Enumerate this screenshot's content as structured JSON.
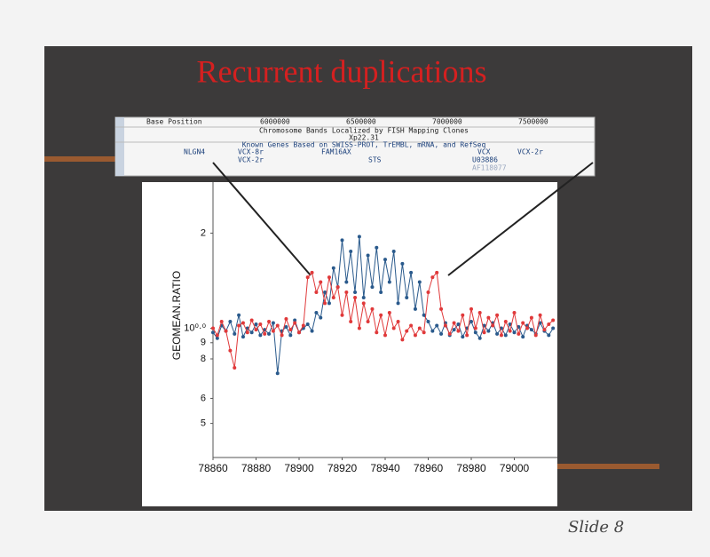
{
  "slide": {
    "title": "Recurrent duplications",
    "note": "Slide 8"
  },
  "browser": {
    "base_label": "Base Position",
    "positions": [
      "6000000",
      "6500000",
      "7000000",
      "7500000"
    ],
    "bands_title": "Chromosome Bands Localized by FISH Mapping Clones",
    "band": "Xp22.31",
    "genes_title": "Known Genes Based on SWISS-PROT, TrEMBL, mRNA, and RefSeq",
    "genes": [
      "NLGN4",
      "VCX-8r",
      "VCX-2r",
      "FAM16AX",
      "STS",
      "VCX",
      "VCX-2r",
      "U03886",
      "AF118077"
    ]
  },
  "chart_data": {
    "type": "line",
    "y_label": "GEOMEAN.RATIO",
    "x": [
      78860,
      78862,
      78864,
      78866,
      78868,
      78870,
      78872,
      78874,
      78876,
      78878,
      78880,
      78882,
      78884,
      78886,
      78888,
      78890,
      78892,
      78894,
      78896,
      78898,
      78900,
      78902,
      78904,
      78906,
      78908,
      78910,
      78912,
      78914,
      78916,
      78918,
      78920,
      78922,
      78924,
      78926,
      78928,
      78930,
      78932,
      78934,
      78936,
      78938,
      78940,
      78942,
      78944,
      78946,
      78948,
      78950,
      78952,
      78954,
      78956,
      78958,
      78960,
      78962,
      78964,
      78966,
      78968,
      78970,
      78972,
      78974,
      78976,
      78978,
      78980,
      78982,
      78984,
      78986,
      78988,
      78990,
      78992,
      78994,
      78996,
      78998,
      79000,
      79002,
      79004,
      79006,
      79008,
      79010,
      79012,
      79014,
      79016,
      79018
    ],
    "series": [
      {
        "color": "#2a5a8c",
        "values": [
          0.97,
          0.93,
          1.02,
          0.98,
          1.05,
          0.96,
          1.1,
          0.94,
          1.0,
          0.97,
          1.03,
          0.95,
          0.99,
          0.96,
          1.04,
          0.72,
          0.98,
          1.01,
          0.95,
          1.06,
          0.97,
          1.0,
          1.03,
          0.98,
          1.12,
          1.08,
          1.3,
          1.2,
          1.55,
          1.35,
          1.9,
          1.4,
          1.75,
          1.3,
          1.95,
          1.25,
          1.7,
          1.35,
          1.8,
          1.3,
          1.65,
          1.4,
          1.75,
          1.2,
          1.6,
          1.25,
          1.5,
          1.15,
          1.4,
          1.1,
          1.05,
          0.98,
          1.02,
          0.96,
          1.04,
          0.95,
          0.99,
          1.03,
          0.94,
          1.0,
          1.05,
          0.97,
          0.93,
          1.02,
          0.98,
          1.04,
          0.96,
          1.0,
          0.95,
          1.03,
          0.97,
          1.01,
          0.94,
          1.02,
          0.99,
          0.96,
          1.04,
          0.98,
          0.95,
          1.0
        ]
      },
      {
        "color": "#e0393a",
        "values": [
          1.0,
          0.95,
          1.05,
          0.98,
          0.85,
          0.75,
          1.02,
          1.04,
          0.97,
          1.06,
          0.99,
          1.03,
          0.96,
          1.05,
          0.98,
          1.02,
          0.95,
          1.07,
          0.99,
          1.04,
          0.97,
          1.02,
          1.45,
          1.5,
          1.3,
          1.4,
          1.2,
          1.45,
          1.25,
          1.35,
          1.1,
          1.3,
          1.05,
          1.25,
          1.0,
          1.2,
          1.05,
          1.15,
          0.97,
          1.1,
          0.95,
          1.12,
          1.0,
          1.05,
          0.92,
          0.98,
          1.02,
          0.95,
          1.0,
          0.97,
          1.3,
          1.45,
          1.5,
          1.15,
          1.02,
          0.96,
          1.04,
          0.98,
          1.1,
          0.95,
          1.15,
          1.0,
          1.12,
          0.97,
          1.08,
          1.02,
          1.1,
          0.95,
          1.05,
          0.98,
          1.12,
          0.96,
          1.04,
          1.0,
          1.08,
          0.95,
          1.1,
          0.99,
          1.03,
          1.06
        ]
      }
    ],
    "log_y": true,
    "xlim": [
      78860,
      79020
    ],
    "ylim": [
      0.39,
      2.9
    ],
    "xticks": [
      78860,
      78880,
      78900,
      78920,
      78940,
      78960,
      78980,
      79000
    ],
    "yticks": [
      {
        "value": 0.5,
        "label": "5"
      },
      {
        "value": 0.6,
        "label": "6"
      },
      {
        "value": 0.8,
        "label": "8"
      },
      {
        "value": 0.9,
        "label": "9"
      },
      {
        "value": 1,
        "label": "10⁰·⁰"
      },
      2
    ]
  }
}
